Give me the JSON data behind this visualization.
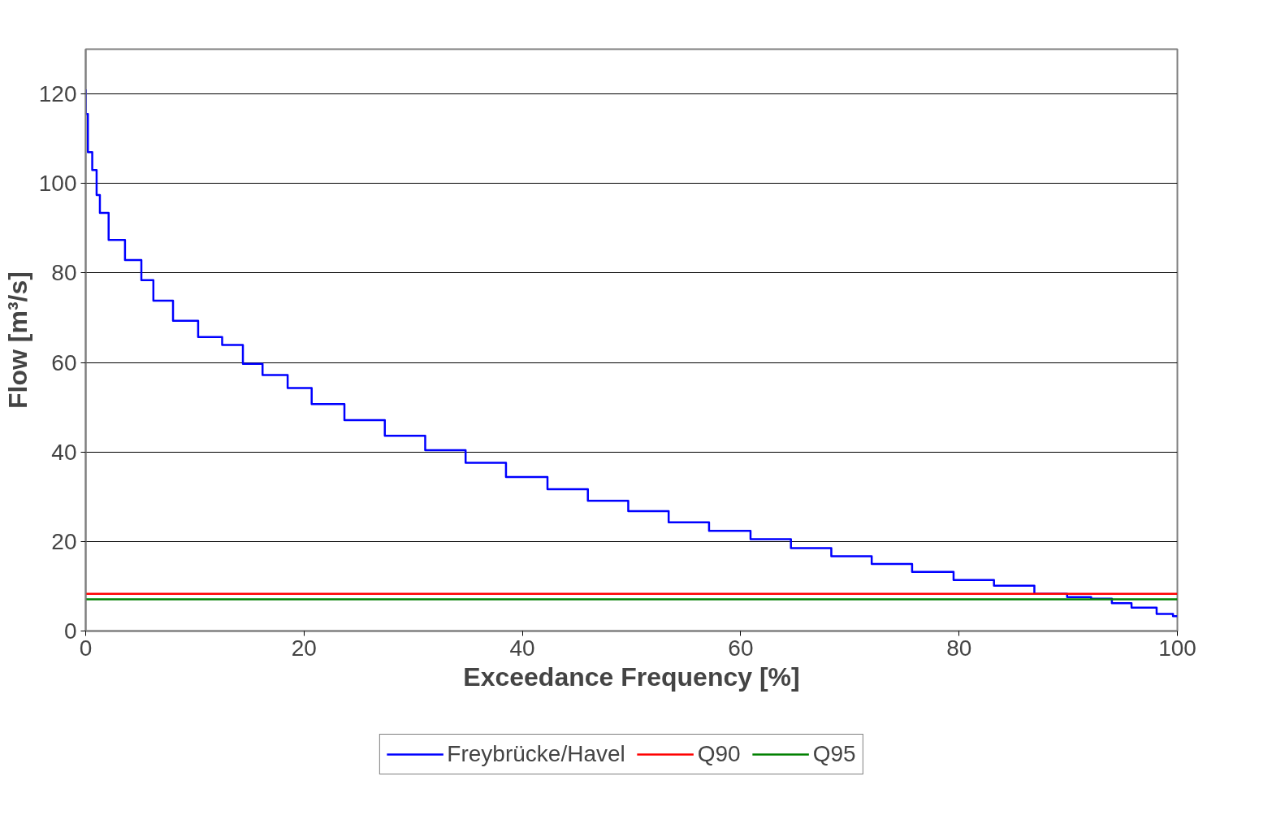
{
  "chart_data": {
    "type": "step",
    "xlabel": "Exceedance Frequency [%]",
    "ylabel": "Flow [m³/s]",
    "xlim": [
      0,
      100
    ],
    "ylim": [
      0,
      130
    ],
    "xticks": [
      0,
      20,
      40,
      60,
      80,
      100
    ],
    "yticks": [
      0,
      20,
      40,
      60,
      80,
      100,
      120
    ],
    "grid": "y",
    "legend": "bottom",
    "line_style": "solid",
    "series": [
      {
        "name": "Freybrücke/Havel",
        "color": "#0000ff",
        "x": [
          0,
          0.2,
          0.6,
          1,
          1.3,
          2.1,
          3.6,
          5.1,
          6.2,
          8,
          10.3,
          12.5,
          14.4,
          16.2,
          18.5,
          20.7,
          23.7,
          27.4,
          31.1,
          34.8,
          38.5,
          42.3,
          46,
          49.7,
          53.4,
          57.1,
          60.9,
          64.6,
          68.3,
          72,
          75.7,
          79.5,
          83.2,
          86.9,
          89.9,
          92.1,
          94,
          95.8,
          98.1,
          99.6,
          100
        ],
        "values": [
          121,
          115.5,
          107,
          103,
          97.4,
          93.4,
          87.4,
          82.9,
          78.4,
          73.8,
          69.3,
          65.7,
          63.9,
          59.7,
          57.2,
          54.3,
          50.7,
          47.1,
          43.6,
          40.4,
          37.6,
          34.4,
          31.7,
          29.1,
          26.8,
          24.3,
          22.4,
          20.5,
          18.5,
          16.7,
          15,
          13.2,
          11.4,
          10.1,
          8.3,
          7.6,
          7.2,
          6.2,
          5.2,
          3.8,
          3.3
        ]
      },
      {
        "name": "Q90",
        "color": "#ff0000",
        "type": "line",
        "x": [
          0,
          100
        ],
        "values": [
          8.3,
          8.3
        ]
      },
      {
        "name": "Q95",
        "color": "#008000",
        "type": "line",
        "x": [
          0,
          100
        ],
        "values": [
          7.1,
          7.1
        ]
      }
    ]
  }
}
